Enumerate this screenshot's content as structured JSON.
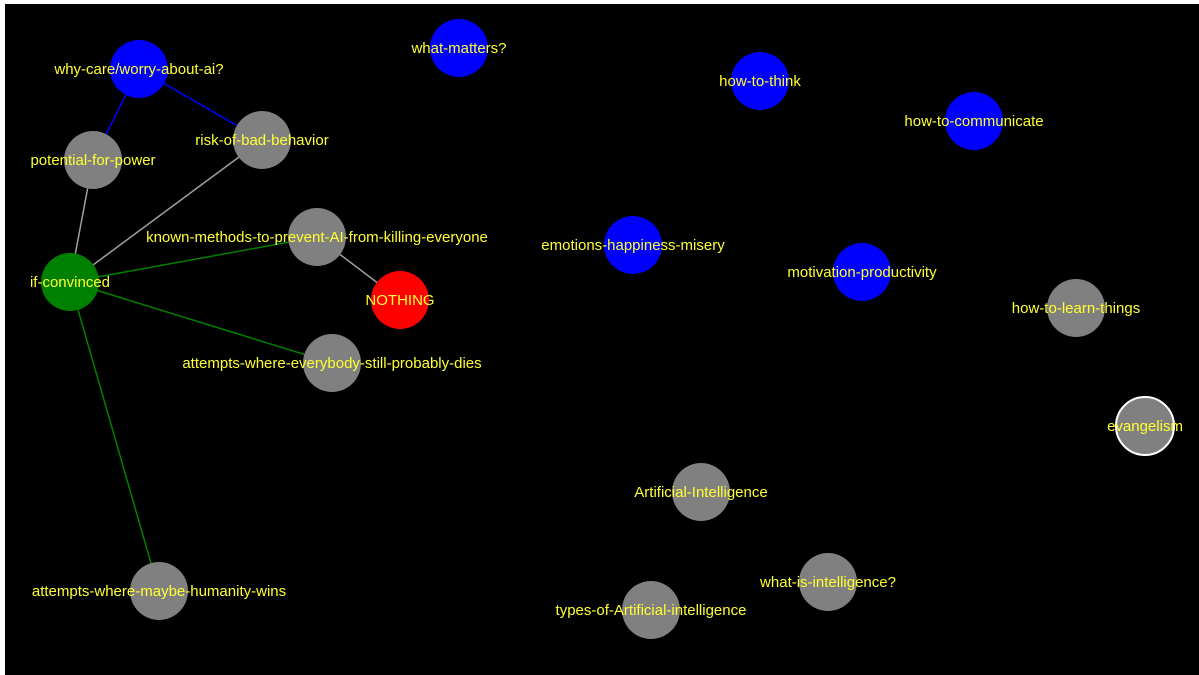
{
  "colors": {
    "background": "#000000",
    "label": "#ffff33",
    "node_gray": "#808080",
    "node_blue": "#0000ff",
    "node_green": "#008000",
    "node_red": "#ff0000",
    "edge_gray": "#a0a0a0",
    "edge_blue": "#0000ff",
    "edge_green": "#008000",
    "selected_outline": "#ffffff"
  },
  "nodes": [
    {
      "id": "why-care",
      "label": "why-care/worry-about-ai?",
      "color": "blue"
    },
    {
      "id": "what-matters",
      "label": "what-matters?",
      "color": "blue"
    },
    {
      "id": "how-to-think",
      "label": "how-to-think",
      "color": "blue"
    },
    {
      "id": "how-to-communicate",
      "label": "how-to-communicate",
      "color": "blue"
    },
    {
      "id": "risk",
      "label": "risk-of-bad-behavior",
      "color": "gray"
    },
    {
      "id": "potential",
      "label": "potential-for-power",
      "color": "gray"
    },
    {
      "id": "known-methods",
      "label": "known-methods-to-prevent-AI-from-killing-everyone",
      "color": "gray"
    },
    {
      "id": "emotions",
      "label": "emotions-happiness-misery",
      "color": "blue"
    },
    {
      "id": "motivation",
      "label": "motivation-productivity",
      "color": "blue"
    },
    {
      "id": "if-convinced",
      "label": "if-convinced",
      "color": "green"
    },
    {
      "id": "nothing",
      "label": "NOTHING",
      "color": "red"
    },
    {
      "id": "how-to-learn",
      "label": "how-to-learn-things",
      "color": "gray"
    },
    {
      "id": "attempts-dies",
      "label": "attempts-where-everybody-still-probably-dies",
      "color": "gray"
    },
    {
      "id": "evangelism",
      "label": "evangelism",
      "color": "gray",
      "selected": true
    },
    {
      "id": "ai",
      "label": "Artificial-Intelligence",
      "color": "gray"
    },
    {
      "id": "what-is-intelligence",
      "label": "what-is-intelligence?",
      "color": "gray"
    },
    {
      "id": "types-ai",
      "label": "types-of-Artificial-intelligence",
      "color": "gray"
    },
    {
      "id": "attempts-wins",
      "label": "attempts-where-maybe-humanity-wins",
      "color": "gray"
    }
  ],
  "edges": [
    {
      "from": "why-care",
      "to": "potential",
      "color": "blue"
    },
    {
      "from": "why-care",
      "to": "risk",
      "color": "blue"
    },
    {
      "from": "potential",
      "to": "if-convinced",
      "color": "gray"
    },
    {
      "from": "risk",
      "to": "if-convinced",
      "color": "gray"
    },
    {
      "from": "known-methods",
      "to": "nothing",
      "color": "gray"
    },
    {
      "from": "if-convinced",
      "to": "known-methods",
      "color": "green"
    },
    {
      "from": "if-convinced",
      "to": "attempts-dies",
      "color": "green"
    },
    {
      "from": "if-convinced",
      "to": "attempts-wins",
      "color": "green"
    }
  ]
}
